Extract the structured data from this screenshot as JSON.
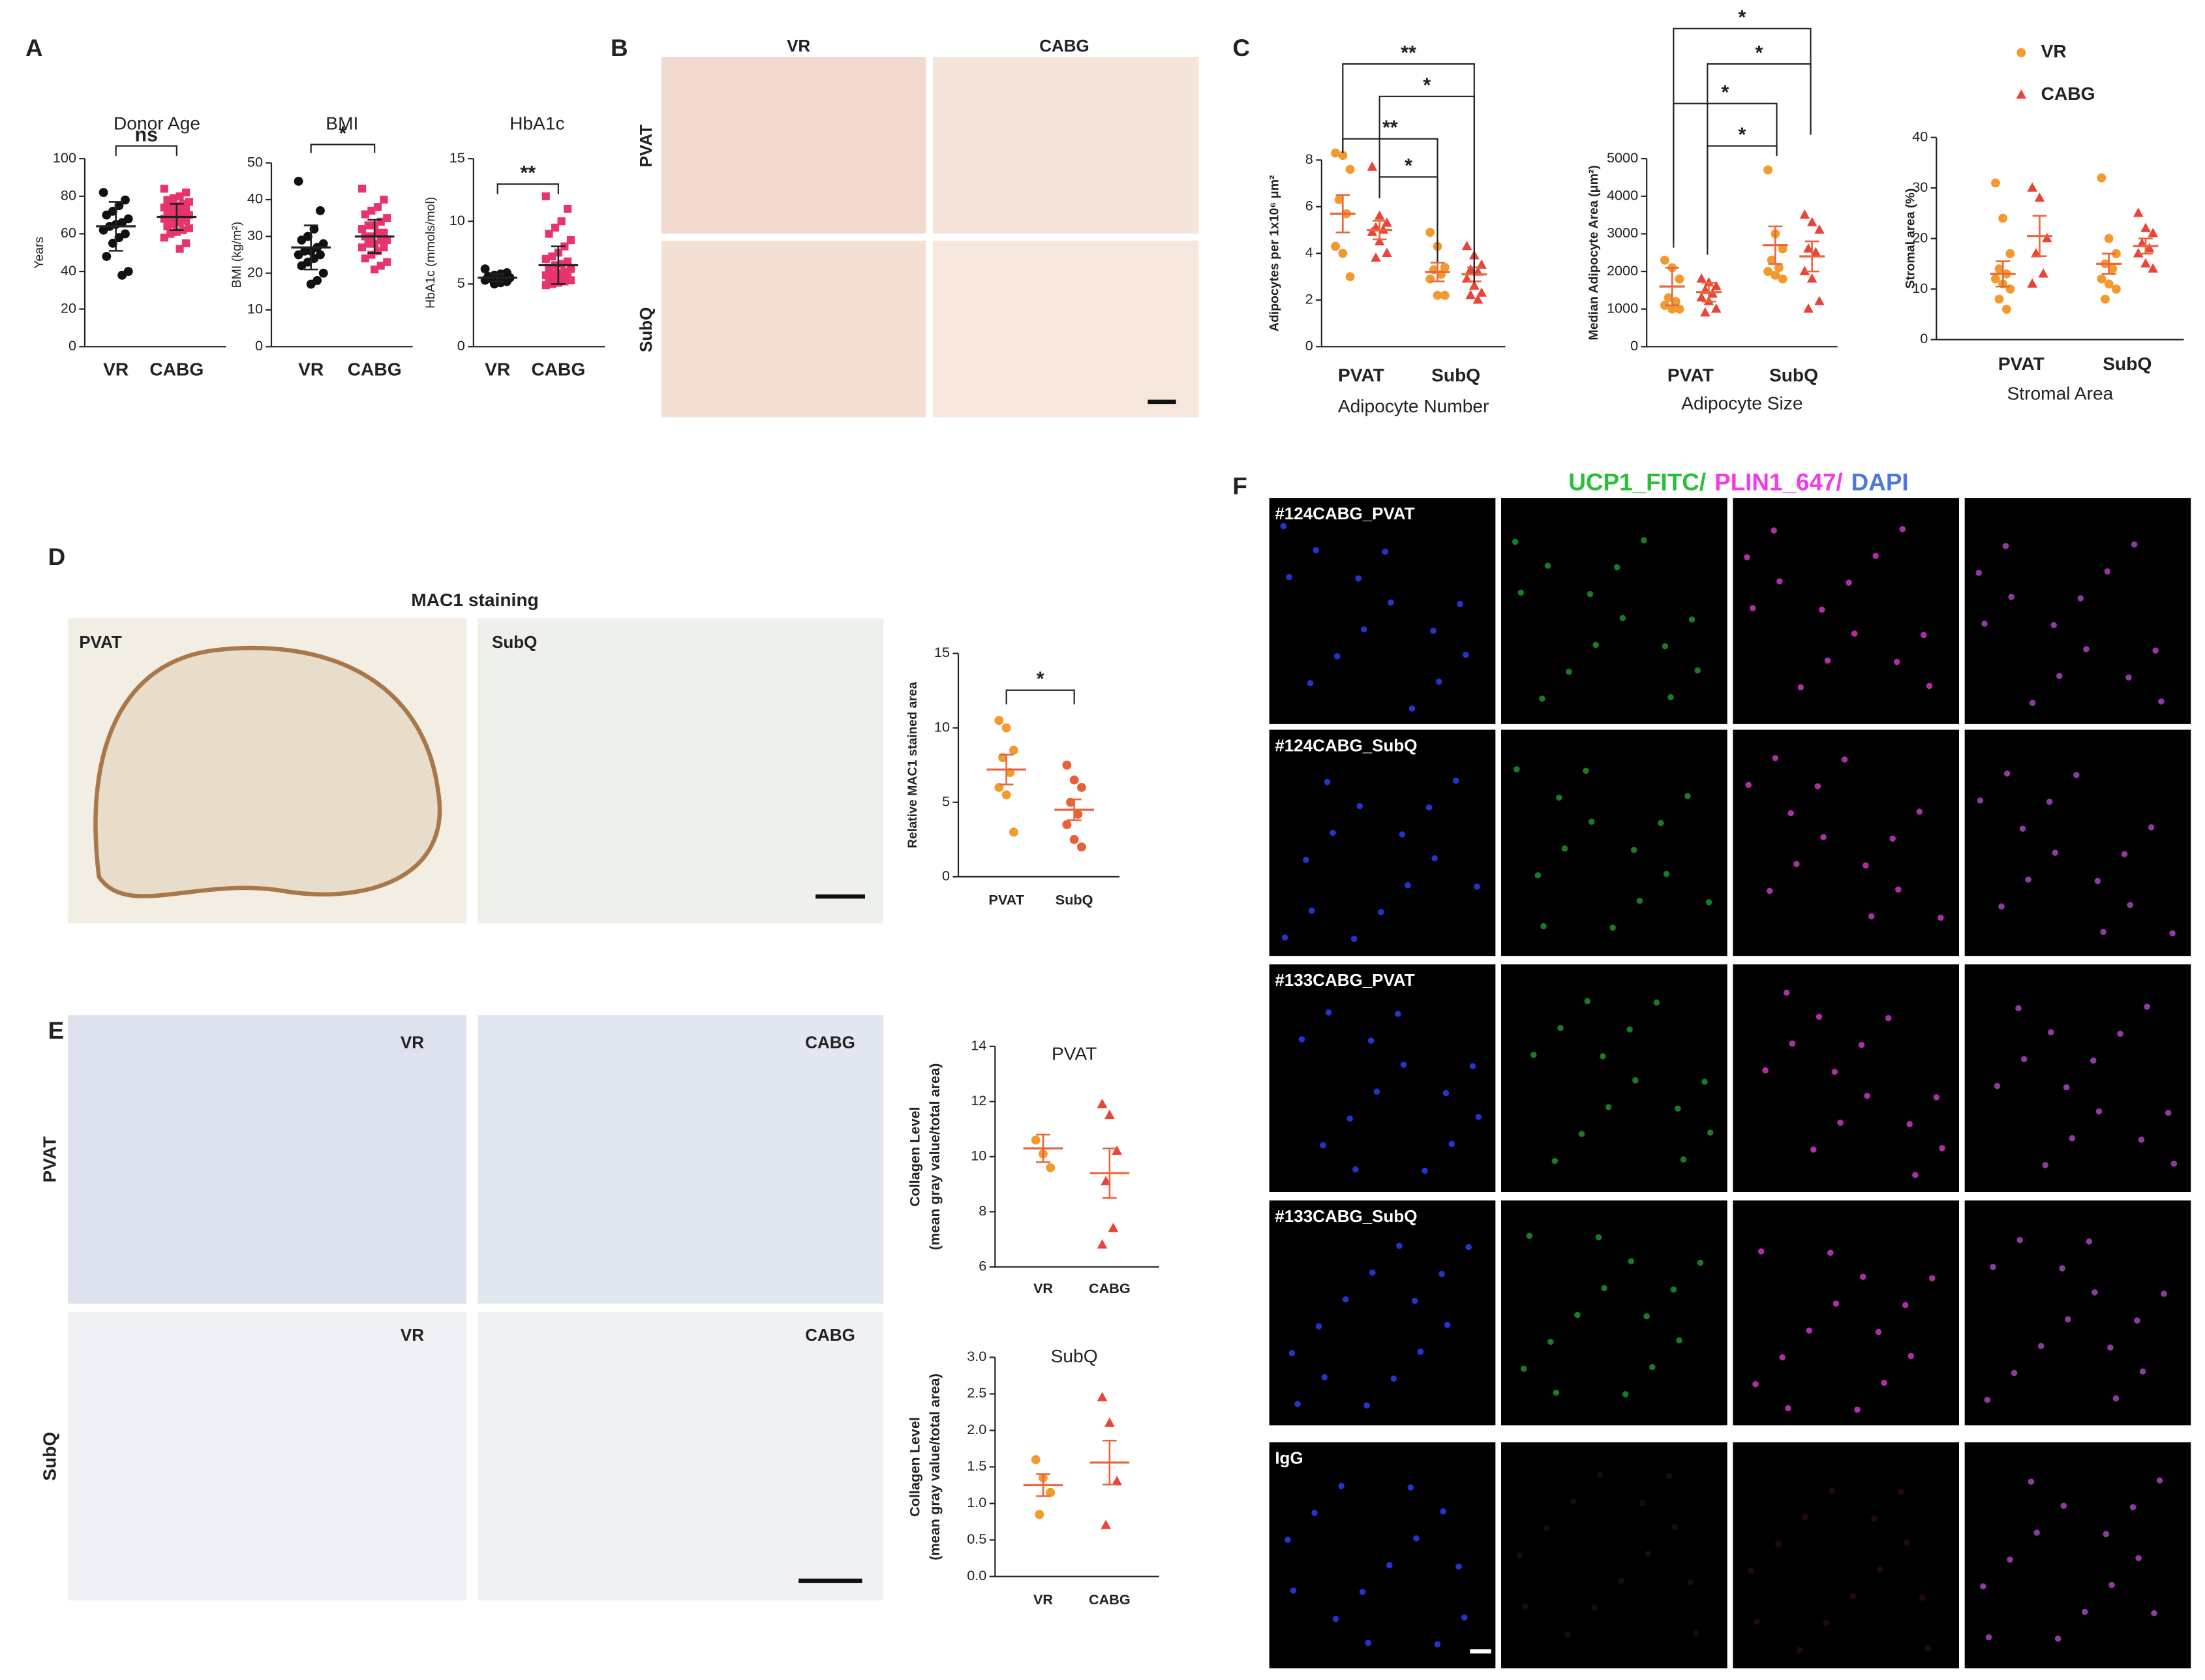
{
  "panels": {
    "letters": [
      "A",
      "B",
      "C",
      "D",
      "E",
      "F"
    ],
    "B": {
      "columns": [
        "VR",
        "CABG"
      ],
      "rows": [
        "PVAT",
        "SubQ"
      ]
    },
    "D": {
      "title": "MAC1 staining",
      "images": [
        "PVAT",
        "SubQ"
      ]
    },
    "E": {
      "columns": [
        "VR",
        "CABG"
      ],
      "rows": [
        "PVAT",
        "SubQ"
      ]
    },
    "F": {
      "channels": [
        {
          "name": "UCP1_FITC/",
          "color": "#2bbd3c"
        },
        {
          "name": "PLIN1_647/",
          "color": "#f03ce6"
        },
        {
          "name": "DAPI",
          "color": "#4a78e0"
        }
      ],
      "rows": [
        "#124CABG_PVAT",
        "#124CABG_SubQ",
        "#133CABG_PVAT",
        "#133CABG_SubQ",
        "IgG"
      ]
    }
  },
  "chart_data": [
    {
      "type": "dot",
      "title": "Donor Age",
      "ylabel": "Years",
      "categories": [
        "VR",
        "CABG"
      ],
      "ylim": [
        0,
        100
      ],
      "yticks": [
        0,
        20,
        40,
        60,
        80,
        100
      ],
      "annotations": [
        "ns"
      ],
      "mean_color": "#222",
      "groups": [
        {
          "color": "#111",
          "marker": "circle",
          "points": [
            82,
            78,
            75,
            72,
            70,
            68,
            66,
            65,
            64,
            62,
            60,
            58,
            55,
            48,
            40,
            38
          ],
          "mean": 64,
          "error": 13
        },
        {
          "color": "#e8336d",
          "marker": "square",
          "points": [
            84,
            82,
            80,
            79,
            78,
            77,
            76,
            75,
            75,
            74,
            73,
            72,
            72,
            71,
            70,
            70,
            69,
            68,
            68,
            67,
            66,
            65,
            64,
            63,
            62,
            61,
            60,
            58,
            55,
            52
          ],
          "mean": 69,
          "error": 7
        }
      ]
    },
    {
      "type": "dot",
      "title": "BMI",
      "ylabel": "BMI (kg/m²)",
      "categories": [
        "VR",
        "CABG"
      ],
      "ylim": [
        0,
        50
      ],
      "yticks": [
        0,
        10,
        20,
        30,
        40,
        50
      ],
      "annotations": [
        "*"
      ],
      "mean_color": "#222",
      "groups": [
        {
          "color": "#111",
          "marker": "circle",
          "points": [
            45,
            37,
            32,
            30,
            29,
            28,
            27,
            26,
            26,
            25,
            25,
            24,
            23,
            22,
            20,
            18,
            17
          ],
          "mean": 27,
          "error": 6
        },
        {
          "color": "#e8336d",
          "marker": "square",
          "points": [
            43,
            40,
            38,
            37,
            36,
            35,
            34,
            33,
            33,
            32,
            31,
            31,
            30,
            30,
            29,
            29,
            28,
            28,
            27,
            27,
            26,
            25,
            24,
            23,
            22,
            21
          ],
          "mean": 30,
          "error": 4.5
        }
      ]
    },
    {
      "type": "dot",
      "title": "HbA1c",
      "ylabel": "HbA1c (mmols/mol)",
      "categories": [
        "VR",
        "CABG"
      ],
      "ylim": [
        0,
        15
      ],
      "yticks": [
        0,
        5,
        10,
        15
      ],
      "annotations": [
        "**"
      ],
      "mean_color": "#222",
      "groups": [
        {
          "color": "#111",
          "marker": "circle",
          "points": [
            6.2,
            5.9,
            5.8,
            5.7,
            5.6,
            5.5,
            5.5,
            5.4,
            5.4,
            5.3,
            5.2,
            5.1,
            5.0
          ],
          "mean": 5.5,
          "error": 0.3
        },
        {
          "color": "#e8336d",
          "marker": "square",
          "points": [
            12,
            11,
            10,
            9.5,
            9,
            8.5,
            8,
            7.5,
            7.2,
            7,
            6.8,
            6.6,
            6.5,
            6.3,
            6.2,
            6,
            5.9,
            5.8,
            5.7,
            5.6,
            5.5,
            5.5,
            5.4,
            5.3,
            5.2,
            5.1,
            5.0,
            4.9
          ],
          "mean": 6.5,
          "error": 1.5
        }
      ]
    },
    {
      "type": "dot",
      "ylabel": "Adipocytes per 1x10⁶ μm²",
      "xlabel": "Adipocyte Number",
      "categories": [
        "PVAT",
        "SubQ"
      ],
      "ylim": [
        0,
        8
      ],
      "yticks": [
        0,
        2,
        4,
        6,
        8
      ],
      "annotations": [
        "**",
        "*",
        "**",
        "*"
      ],
      "mean_color": "#e8663a",
      "series": [
        {
          "color": "#f39a2e",
          "marker": "circle",
          "groups": [
            {
              "points": [
                8.3,
                8.2,
                7.6,
                6.3,
                5.7,
                4.3,
                4.0,
                3.0
              ],
              "mean": 5.7,
              "error": 0.8
            },
            {
              "points": [
                4.9,
                4.3,
                3.4,
                3.3,
                3.1,
                2.9,
                2.2,
                2.2
              ],
              "mean": 3.2,
              "error": 0.4
            }
          ]
        },
        {
          "color": "#e8443a",
          "marker": "triangle",
          "groups": [
            {
              "points": [
                7.7,
                5.6,
                5.3,
                5.1,
                5.0,
                4.9,
                4.5,
                4.0,
                3.8
              ],
              "mean": 5.0,
              "error": 0.4
            },
            {
              "points": [
                4.3,
                3.9,
                3.5,
                3.3,
                3.2,
                2.9,
                2.6,
                2.3,
                2.2,
                2.0
              ],
              "mean": 3.1,
              "error": 0.3
            }
          ]
        }
      ]
    },
    {
      "type": "dot",
      "ylabel": "Median Adipocyte Area (μm²)",
      "xlabel": "Adipocyte Size",
      "categories": [
        "PVAT",
        "SubQ"
      ],
      "ylim": [
        0,
        5000
      ],
      "yticks": [
        0,
        1000,
        2000,
        3000,
        4000,
        5000
      ],
      "annotations": [
        "*",
        "*",
        "*",
        "*"
      ],
      "mean_color": "#e8663a",
      "series": [
        {
          "color": "#f39a2e",
          "marker": "circle",
          "groups": [
            {
              "points": [
                2300,
                2100,
                1800,
                1300,
                1200,
                1100,
                1000,
                1000
              ],
              "mean": 1600,
              "error": 500
            },
            {
              "points": [
                4700,
                3000,
                2600,
                2300,
                2100,
                2000,
                1900,
                1800
              ],
              "mean": 2700,
              "error": 500
            }
          ]
        },
        {
          "color": "#e8443a",
          "marker": "triangle",
          "groups": [
            {
              "points": [
                1800,
                1700,
                1600,
                1500,
                1400,
                1300,
                1200,
                1000,
                900
              ],
              "mean": 1450,
              "error": 250
            },
            {
              "points": [
                3500,
                3300,
                3100,
                2600,
                2500,
                2000,
                1800,
                1200,
                1000
              ],
              "mean": 2400,
              "error": 400
            }
          ]
        }
      ]
    },
    {
      "type": "dot",
      "ylabel": "Stromal area (%)",
      "xlabel": "Stromal Area",
      "categories": [
        "PVAT",
        "SubQ"
      ],
      "ylim": [
        0,
        40
      ],
      "yticks": [
        0,
        10,
        20,
        30,
        40
      ],
      "legend": "top",
      "mean_color": "#e8663a",
      "series": [
        {
          "name": "VR",
          "color": "#f39a2e",
          "marker": "circle",
          "groups": [
            {
              "points": [
                31,
                24,
                17,
                14,
                13,
                12,
                11,
                10,
                8,
                6
              ],
              "mean": 13,
              "error": 2.5
            },
            {
              "points": [
                32,
                20,
                17,
                15,
                14,
                12,
                11,
                10,
                8
              ],
              "mean": 15,
              "error": 2
            }
          ]
        },
        {
          "name": "CABG",
          "color": "#e8443a",
          "marker": "triangle",
          "groups": [
            {
              "points": [
                30,
                28,
                20,
                17,
                13,
                11
              ],
              "mean": 20.5,
              "error": 4
            },
            {
              "points": [
                25,
                22,
                21,
                19,
                18,
                17,
                15,
                14
              ],
              "mean": 18.5,
              "error": 1.5
            }
          ]
        }
      ]
    },
    {
      "type": "dot",
      "ylabel": "Relative MAC1 stained area",
      "categories": [
        "PVAT",
        "SubQ"
      ],
      "ylim": [
        0,
        15
      ],
      "yticks": [
        0,
        5,
        10,
        15
      ],
      "annotations": [
        "*"
      ],
      "mean_color": "#e8663a",
      "groups": [
        {
          "color": "#f39a2e",
          "marker": "circle",
          "points": [
            10.5,
            10,
            8.5,
            8,
            7,
            6,
            5.5,
            3
          ],
          "mean": 7.2,
          "error": 1
        },
        {
          "color": "#e8603a",
          "marker": "circle",
          "points": [
            7.5,
            6.5,
            6,
            5,
            4.2,
            3.5,
            2.5,
            2
          ],
          "mean": 4.5,
          "error": 0.7
        }
      ]
    },
    {
      "type": "dot",
      "title": "PVAT",
      "ylabel": [
        "Collagen Level",
        "(mean gray value/total area)"
      ],
      "categories": [
        "VR",
        "CABG"
      ],
      "ylim": [
        6,
        14
      ],
      "yticks": [
        6,
        8,
        10,
        12,
        14
      ],
      "mean_color": "#e8663a",
      "groups": [
        {
          "color": "#f39a2e",
          "marker": "circle",
          "points": [
            10.6,
            10.1,
            9.6
          ],
          "mean": 10.3,
          "error": 0.5
        },
        {
          "color": "#e8443a",
          "marker": "triangle",
          "points": [
            11.9,
            11.5,
            10.2,
            9.1,
            7.4,
            6.8
          ],
          "mean": 9.4,
          "error": 0.9
        }
      ]
    },
    {
      "type": "dot",
      "title": "SubQ",
      "ylabel": [
        "Collagen Level",
        "(mean gray value/total area)"
      ],
      "categories": [
        "VR",
        "CABG"
      ],
      "ylim": [
        0,
        3
      ],
      "yticks": [
        {
          "value": 0,
          "label": "0.0"
        },
        0.5,
        {
          "value": 1,
          "label": "1.0"
        },
        1.5,
        {
          "value": 2,
          "label": "2.0"
        },
        2.5,
        {
          "value": 3,
          "label": "3.0"
        }
      ],
      "mean_color": "#e8663a",
      "groups": [
        {
          "color": "#f39a2e",
          "marker": "circle",
          "points": [
            1.6,
            1.35,
            1.15,
            0.85
          ],
          "mean": 1.25,
          "error": 0.15
        },
        {
          "color": "#e8443a",
          "marker": "triangle",
          "points": [
            2.45,
            2.1,
            1.3,
            0.7
          ],
          "mean": 1.56,
          "error": 0.3
        }
      ]
    }
  ]
}
